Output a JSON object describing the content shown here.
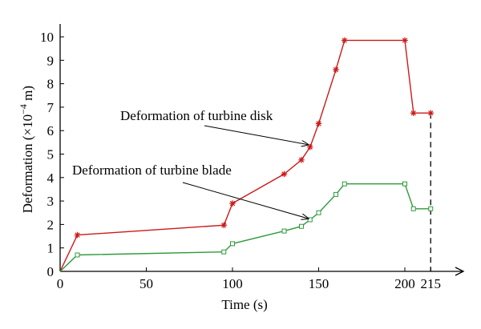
{
  "chart_data": {
    "type": "line",
    "xlabel": "Time (s)",
    "ylabel": "Deformation (×10",
    "ylabel_exp": "−4",
    "ylabel_unit": " m)",
    "xlim": [
      0,
      230
    ],
    "ylim": [
      0,
      10.5
    ],
    "xticks": [
      0,
      50,
      100,
      150,
      200,
      215
    ],
    "xtick_labels": [
      "0",
      "50",
      "100",
      "150",
      "200",
      "215"
    ],
    "yticks": [
      0,
      1,
      2,
      3,
      4,
      5,
      6,
      7,
      8,
      9,
      10
    ],
    "ytick_labels": [
      "0",
      "1",
      "2",
      "3",
      "4",
      "5",
      "6",
      "7",
      "8",
      "9",
      "10"
    ],
    "grid": false,
    "series": [
      {
        "key": "disk",
        "color": "#cc1a1a",
        "marker": "asterisk",
        "x": [
          0,
          10,
          95,
          100,
          130,
          140,
          145,
          150,
          160,
          165,
          200,
          205,
          215
        ],
        "y": [
          0,
          1.55,
          1.97,
          2.9,
          4.15,
          4.75,
          5.3,
          6.3,
          8.6,
          9.85,
          9.85,
          6.75,
          6.75
        ]
      },
      {
        "key": "blade",
        "color": "#2e9a3a",
        "marker": "square",
        "x": [
          0,
          10,
          95,
          100,
          130,
          140,
          145,
          150,
          160,
          165,
          200,
          205,
          215
        ],
        "y": [
          0,
          0.7,
          0.83,
          1.18,
          1.72,
          1.92,
          2.2,
          2.5,
          3.28,
          3.73,
          3.73,
          2.67,
          2.67
        ]
      }
    ],
    "annotations": [
      {
        "key": "disk",
        "text": "Deformation of turbine disk",
        "target": [
          144,
          5.4
        ]
      },
      {
        "key": "blade",
        "text": "Deformation of turbine blade",
        "target": [
          144,
          2.25
        ]
      }
    ],
    "reference_line": {
      "x": 215,
      "style": "dashed"
    }
  }
}
